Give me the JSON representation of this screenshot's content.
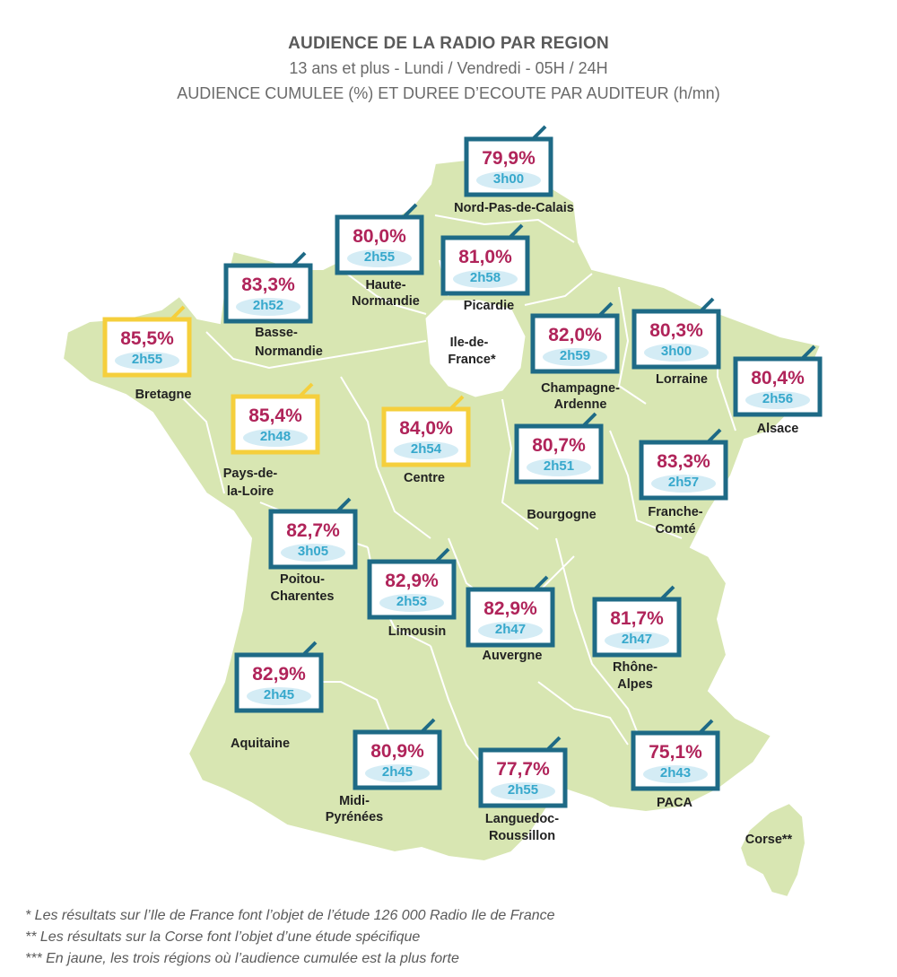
{
  "header": {
    "title": "AUDIENCE DE LA RADIO PAR REGION",
    "subtitle1": "13 ans et plus - Lundi / Vendredi - 05H / 24H",
    "subtitle2": "AUDIENCE CUMULEE (%) ET DUREE D’ECOUTE PAR AUDITEUR (h/mn)"
  },
  "colors": {
    "map_fill": "#d8e6b2",
    "border": "#ffffff",
    "tv_teal": "#1e6a86",
    "tv_yellow": "#f5cf3c",
    "pct_color": "#b0245a",
    "dur_color": "#37a8cc"
  },
  "regions": [
    {
      "name": "Nord-Pas-de-Calais",
      "pct": "79,9%",
      "dur": "3h00",
      "highlight": false
    },
    {
      "name": "Haute-Normandie",
      "pct": "80,0%",
      "dur": "2h55",
      "highlight": false
    },
    {
      "name": "Picardie",
      "pct": "81,0%",
      "dur": "2h58",
      "highlight": false
    },
    {
      "name": "Basse-Normandie",
      "pct": "83,3%",
      "dur": "2h52",
      "highlight": false
    },
    {
      "name": "Bretagne",
      "pct": "85,5%",
      "dur": "2h55",
      "highlight": true
    },
    {
      "name": "Champagne-Ardenne",
      "pct": "82,0%",
      "dur": "2h59",
      "highlight": false
    },
    {
      "name": "Lorraine",
      "pct": "80,3%",
      "dur": "3h00",
      "highlight": false
    },
    {
      "name": "Alsace",
      "pct": "80,4%",
      "dur": "2h56",
      "highlight": false
    },
    {
      "name": "Pays-de-la-Loire",
      "pct": "85,4%",
      "dur": "2h48",
      "highlight": true
    },
    {
      "name": "Centre",
      "pct": "84,0%",
      "dur": "2h54",
      "highlight": true
    },
    {
      "name": "Bourgogne",
      "pct": "80,7%",
      "dur": "2h51",
      "highlight": false
    },
    {
      "name": "Franche-Comté",
      "pct": "83,3%",
      "dur": "2h57",
      "highlight": false
    },
    {
      "name": "Poitou-Charentes",
      "pct": "82,7%",
      "dur": "3h05",
      "highlight": false
    },
    {
      "name": "Limousin",
      "pct": "82,9%",
      "dur": "2h53",
      "highlight": false
    },
    {
      "name": "Auvergne",
      "pct": "82,9%",
      "dur": "2h47",
      "highlight": false
    },
    {
      "name": "Rhône-Alpes",
      "pct": "81,7%",
      "dur": "2h47",
      "highlight": false
    },
    {
      "name": "Aquitaine",
      "pct": "82,9%",
      "dur": "2h45",
      "highlight": false
    },
    {
      "name": "Midi-Pyrénées",
      "pct": "80,9%",
      "dur": "2h45",
      "highlight": false
    },
    {
      "name": "Languedoc-Roussillon",
      "pct": "77,7%",
      "dur": "2h55",
      "highlight": false
    },
    {
      "name": "PACA",
      "pct": "75,1%",
      "dur": "2h43",
      "highlight": false
    }
  ],
  "labels": {
    "nord1": "Nord-Pas-de-Calais",
    "hn1": "Haute-",
    "hn2": "Normandie",
    "picardie": "Picardie",
    "bn1": "Basse-",
    "bn2": "Normandie",
    "bretagne": "Bretagne",
    "idf1": "Ile-de-",
    "idf2": "France*",
    "ca1": "Champagne-",
    "ca2": "Ardenne",
    "lorraine": "Lorraine",
    "alsace": "Alsace",
    "pdl1": "Pays-de-",
    "pdl2": "la-Loire",
    "centre": "Centre",
    "bourgogne": "Bourgogne",
    "fc1": "Franche-",
    "fc2": "Comté",
    "pc1": "Poitou-",
    "pc2": "Charentes",
    "limousin": "Limousin",
    "auvergne": "Auvergne",
    "ra1": "Rhône-",
    "ra2": "Alpes",
    "aquitaine": "Aquitaine",
    "mp1": "Midi-",
    "mp2": "Pyrénées",
    "lr1": "Languedoc-",
    "lr2": "Roussillon",
    "paca": "PACA",
    "corse": "Corse**"
  },
  "footnotes": [
    "* Les résultats sur l’Ile de France font l’objet de l’étude 126 000 Radio Ile de France",
    "** Les résultats sur la Corse font l’objet d’une étude spécifique",
    "*** En jaune, les trois régions où l’audience cumulée est la plus forte"
  ]
}
